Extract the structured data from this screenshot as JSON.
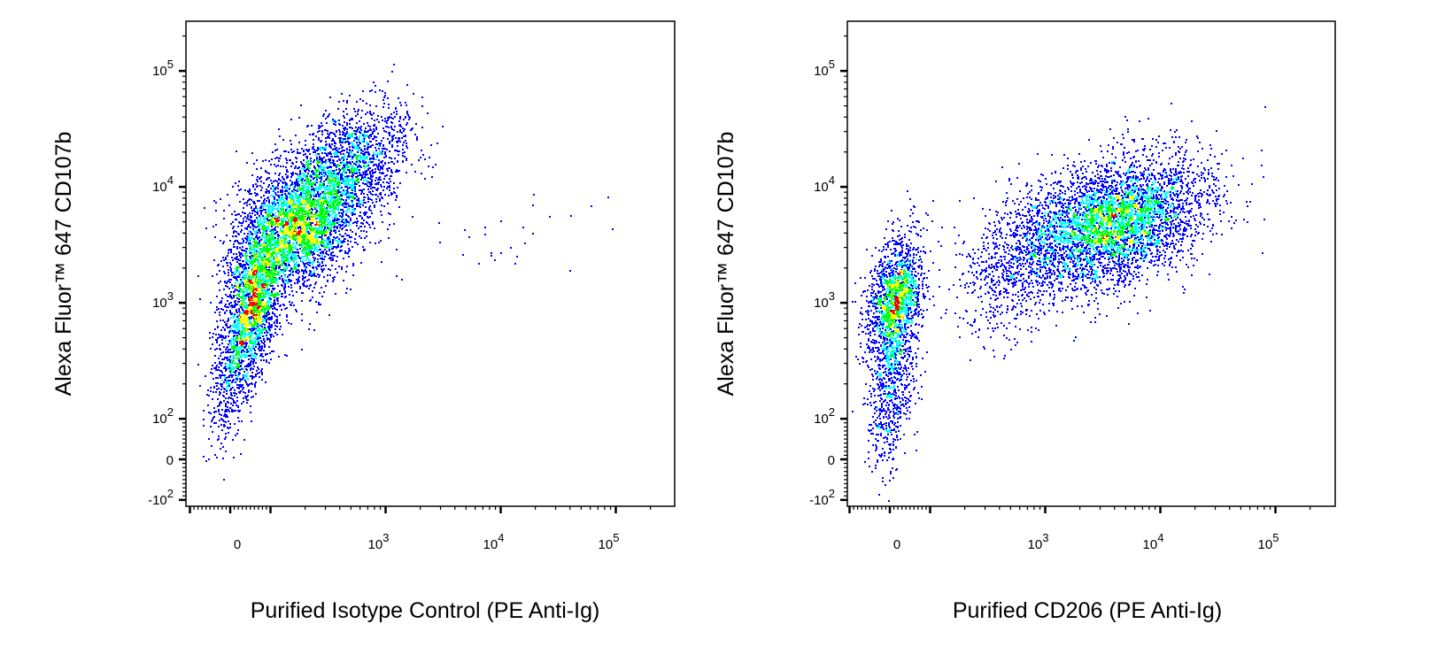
{
  "chart_data": [
    {
      "type": "scatter",
      "subtype": "flow-cytometry-pseudocolor-density",
      "xlabel": "Purified Isotype Control (PE Anti-Ig)",
      "ylabel": "Alexa Fluor™ 647  CD107b",
      "x_scale": "biexponential",
      "y_scale": "biexponential",
      "xlim": [
        -120,
        262144
      ],
      "ylim": [
        -150,
        262144
      ],
      "x_ticks": [
        {
          "base": "0",
          "exp": ""
        },
        {
          "base": "10",
          "exp": "3"
        },
        {
          "base": "10",
          "exp": "4"
        },
        {
          "base": "10",
          "exp": "5"
        }
      ],
      "y_ticks": [
        {
          "base": "-10",
          "exp": "2"
        },
        {
          "base": "0",
          "exp": ""
        },
        {
          "base": "10",
          "exp": "2"
        },
        {
          "base": "10",
          "exp": "3"
        },
        {
          "base": "10",
          "exp": "4"
        },
        {
          "base": "10",
          "exp": "5"
        }
      ],
      "density_colors": [
        "#0000ff",
        "#00ffff",
        "#00ff00",
        "#ffff00",
        "#ff0000"
      ],
      "grid": false,
      "populations": [
        {
          "x": 180,
          "y": 5000,
          "spread_x_decades": 0.28,
          "spread_y_decades": 0.3,
          "events": 4000
        },
        {
          "x": 55,
          "y": 1000,
          "spread_x_decades": 0.12,
          "spread_y_decades": 0.33,
          "events": 2000
        },
        {
          "x": 540,
          "y": 17000,
          "spread_x_decades": 0.25,
          "spread_y_decades": 0.25,
          "events": 1200
        },
        {
          "x": 0,
          "y": 250,
          "spread_x_decades": 0.1,
          "spread_y_decades": 0.3,
          "events": 500
        },
        {
          "x": 10000,
          "y": 4000,
          "spread_x_decades": 0.5,
          "spread_y_decades": 0.2,
          "events": 30
        }
      ]
    },
    {
      "type": "scatter",
      "subtype": "flow-cytometry-pseudocolor-density",
      "xlabel": "Purified CD206  (PE Anti-Ig)",
      "ylabel": "Alexa Fluor™ 647  CD107b",
      "x_scale": "biexponential",
      "y_scale": "biexponential",
      "xlim": [
        -120,
        262144
      ],
      "ylim": [
        -150,
        262144
      ],
      "x_ticks": [
        {
          "base": "0",
          "exp": ""
        },
        {
          "base": "10",
          "exp": "3"
        },
        {
          "base": "10",
          "exp": "4"
        },
        {
          "base": "10",
          "exp": "5"
        }
      ],
      "y_ticks": [
        {
          "base": "-10",
          "exp": "2"
        },
        {
          "base": "0",
          "exp": ""
        },
        {
          "base": "10",
          "exp": "2"
        },
        {
          "base": "10",
          "exp": "3"
        },
        {
          "base": "10",
          "exp": "4"
        },
        {
          "base": "10",
          "exp": "5"
        }
      ],
      "density_colors": [
        "#0000ff",
        "#00ffff",
        "#00ff00",
        "#ffff00",
        "#ff0000"
      ],
      "grid": false,
      "populations": [
        {
          "x": 10,
          "y": 960,
          "spread_x_decades": 0.12,
          "spread_y_decades": 0.3,
          "events": 1800
        },
        {
          "x": 0,
          "y": 150,
          "spread_x_decades": 0.1,
          "spread_y_decades": 0.3,
          "events": 500
        },
        {
          "x": 3700,
          "y": 5000,
          "spread_x_decades": 0.4,
          "spread_y_decades": 0.28,
          "events": 4500
        },
        {
          "x": 560,
          "y": 2100,
          "spread_x_decades": 0.25,
          "spread_y_decades": 0.3,
          "events": 700
        }
      ]
    }
  ]
}
